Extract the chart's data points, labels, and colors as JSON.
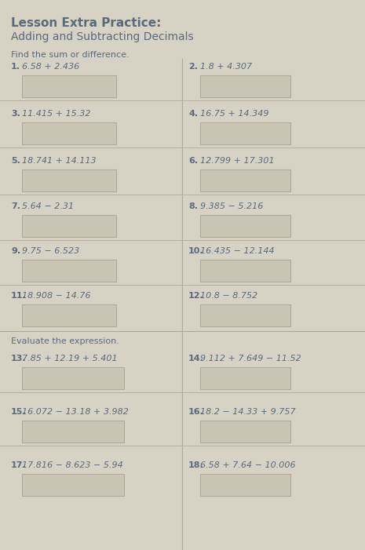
{
  "title_bold": "Lesson Extra Practice:",
  "title_sub": "Adding and Subtracting Decimals",
  "section1_header": "Find the sum or difference.",
  "section2_header": "Evaluate the expression.",
  "bg_color": "#d6d3c4",
  "text_color": "#5a6a7a",
  "box_color": "#c8c5b5",
  "box_edge_color": "#b0a898",
  "divider_color": "#b0a898",
  "problems": [
    {
      "num": "1.",
      "expr": "6.58 + 2.436",
      "col": 0
    },
    {
      "num": "2.",
      "expr": "1.8 + 4.307",
      "col": 1
    },
    {
      "num": "3.",
      "expr": "11.415 + 15.32",
      "col": 0
    },
    {
      "num": "4.",
      "expr": "16.75 + 14.349",
      "col": 1
    },
    {
      "num": "5.",
      "expr": "18.741 + 14.113",
      "col": 0
    },
    {
      "num": "6.",
      "expr": "12.799 + 17.301",
      "col": 1
    },
    {
      "num": "7.",
      "expr": "5.64 − 2.31",
      "col": 0
    },
    {
      "num": "8.",
      "expr": "9.385 − 5.216",
      "col": 1
    },
    {
      "num": "9.",
      "expr": "9.75 − 6.523",
      "col": 0
    },
    {
      "num": "10.",
      "expr": "16.435 − 12.144",
      "col": 1
    },
    {
      "num": "11.",
      "expr": "18.908 − 14.76",
      "col": 0
    },
    {
      "num": "12.",
      "expr": "10.8 − 8.752",
      "col": 1
    }
  ],
  "problems2": [
    {
      "num": "13.",
      "expr": "7.85 + 12.19 + 5.401",
      "col": 0
    },
    {
      "num": "14.",
      "expr": "9.112 + 7.649 − 11.52",
      "col": 1
    },
    {
      "num": "15.",
      "expr": "16.072 − 13.18 + 3.982",
      "col": 0
    },
    {
      "num": "16.",
      "expr": "18.2 − 14.33 + 9.757",
      "col": 1
    },
    {
      "num": "17.",
      "expr": "17.816 − 8.623 − 5.94",
      "col": 0
    },
    {
      "num": "18.",
      "expr": "6.58 + 7.64 − 10.006",
      "col": 1
    }
  ]
}
